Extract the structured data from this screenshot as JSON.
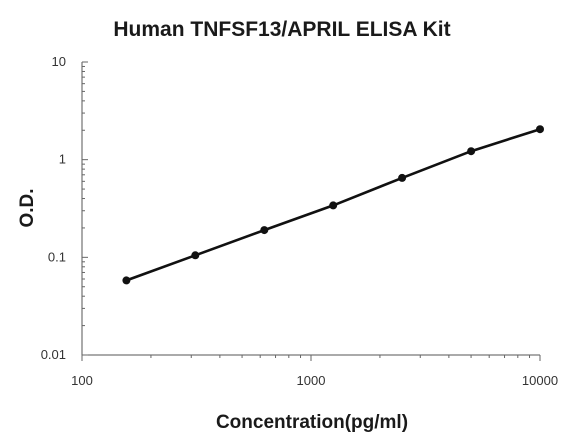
{
  "chart_data": {
    "type": "line",
    "title": "Human TNFSF13/APRIL ELISA Kit",
    "xlabel": "Concentration(pg/ml)",
    "ylabel": "O.D.",
    "xscale": "log",
    "yscale": "log",
    "xlim": [
      100,
      10000
    ],
    "ylim": [
      0.01,
      10
    ],
    "grid": false,
    "legend": "none",
    "x_ticks": [
      "100",
      "1000",
      "10000"
    ],
    "y_ticks": [
      "0.01",
      "0.1",
      "1",
      "10"
    ],
    "series": [
      {
        "x": [
          156.25,
          312.5,
          625,
          1250,
          2500,
          5000,
          10000
        ],
        "y": [
          0.058,
          0.105,
          0.19,
          0.34,
          0.65,
          1.22,
          2.05
        ]
      }
    ],
    "colors": {
      "line": "#111111",
      "axis": "#555555"
    }
  }
}
